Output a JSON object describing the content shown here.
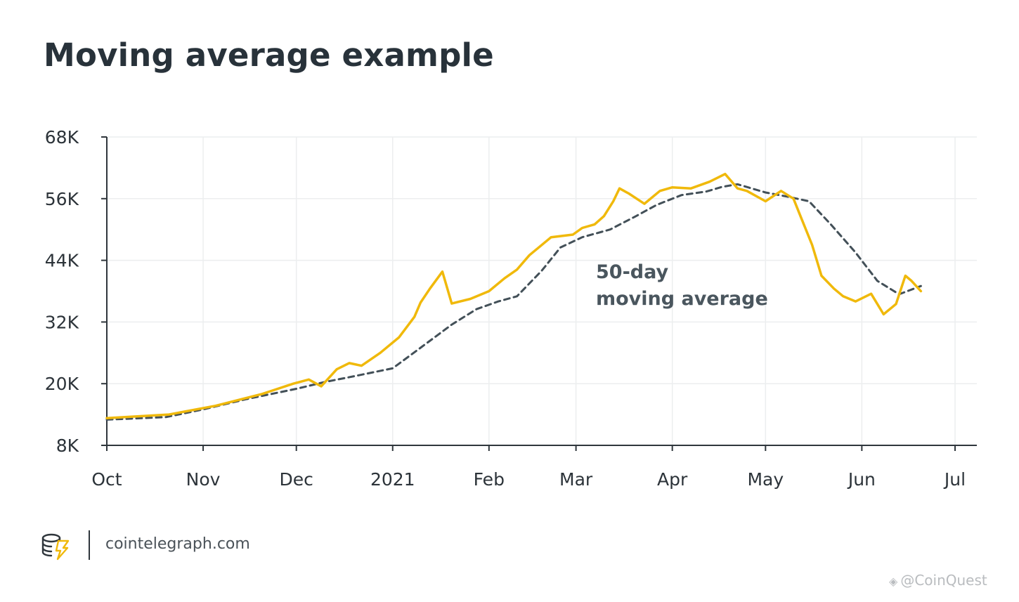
{
  "page": {
    "title": "Moving average example"
  },
  "chart_data": {
    "type": "line",
    "title": "Moving average example",
    "xlabel": "",
    "ylabel": "",
    "x_ticks": [
      "Oct",
      "Nov",
      "Dec",
      "2021",
      "Feb",
      "Mar",
      "Apr",
      "May",
      "Jun",
      "Jul"
    ],
    "y_ticks": [
      "8K",
      "20K",
      "32K",
      "44K",
      "56K",
      "68K"
    ],
    "ylim": [
      8000,
      68000
    ],
    "xlim": [
      "2020-10-01",
      "2021-07-01"
    ],
    "grid": true,
    "annotation": {
      "line1": "50-day",
      "line2": "moving average"
    },
    "series": [
      {
        "color": "#f0b90b",
        "style": "solid",
        "points": [
          [
            "2020-10-01",
            13300
          ],
          [
            "2020-10-21",
            14000
          ],
          [
            "2020-11-05",
            15700
          ],
          [
            "2020-11-20",
            18000
          ],
          [
            "2020-11-30",
            20000
          ],
          [
            "2020-12-05",
            20800
          ],
          [
            "2020-12-09",
            19500
          ],
          [
            "2020-12-14",
            22800
          ],
          [
            "2020-12-18",
            24000
          ],
          [
            "2020-12-22",
            23500
          ],
          [
            "2020-12-28",
            26000
          ],
          [
            "2021-01-03",
            29000
          ],
          [
            "2021-01-08",
            33000
          ],
          [
            "2021-01-10",
            35800
          ],
          [
            "2021-01-13",
            38500
          ],
          [
            "2021-01-17",
            41800
          ],
          [
            "2021-01-20",
            35600
          ],
          [
            "2021-01-26",
            36500
          ],
          [
            "2021-02-01",
            38000
          ],
          [
            "2021-02-06",
            40500
          ],
          [
            "2021-02-10",
            42200
          ],
          [
            "2021-02-14",
            45000
          ],
          [
            "2021-02-21",
            48500
          ],
          [
            "2021-02-28",
            49000
          ],
          [
            "2021-03-03",
            50300
          ],
          [
            "2021-03-07",
            51000
          ],
          [
            "2021-03-10",
            52600
          ],
          [
            "2021-03-13",
            55500
          ],
          [
            "2021-03-15",
            58000
          ],
          [
            "2021-03-18",
            57000
          ],
          [
            "2021-03-23",
            55000
          ],
          [
            "2021-03-28",
            57500
          ],
          [
            "2021-04-01",
            58200
          ],
          [
            "2021-04-07",
            58000
          ],
          [
            "2021-04-13",
            59300
          ],
          [
            "2021-04-18",
            60800
          ],
          [
            "2021-04-22",
            58000
          ],
          [
            "2021-04-25",
            57500
          ],
          [
            "2021-05-01",
            55500
          ],
          [
            "2021-05-06",
            57500
          ],
          [
            "2021-05-10",
            56000
          ],
          [
            "2021-05-12",
            53000
          ],
          [
            "2021-05-16",
            47000
          ],
          [
            "2021-05-19",
            41000
          ],
          [
            "2021-05-23",
            38500
          ],
          [
            "2021-05-26",
            37000
          ],
          [
            "2021-05-30",
            36000
          ],
          [
            "2021-06-04",
            37500
          ],
          [
            "2021-06-08",
            33500
          ],
          [
            "2021-06-12",
            35500
          ],
          [
            "2021-06-15",
            41000
          ],
          [
            "2021-06-17",
            40000
          ],
          [
            "2021-06-20",
            38000
          ]
        ]
      },
      {
        "color": "#435058",
        "style": "dashed",
        "points": [
          [
            "2020-10-01",
            13000
          ],
          [
            "2020-10-20",
            13500
          ],
          [
            "2020-11-01",
            15000
          ],
          [
            "2020-11-15",
            17000
          ],
          [
            "2020-12-01",
            19000
          ],
          [
            "2020-12-10",
            20300
          ],
          [
            "2020-12-20",
            21500
          ],
          [
            "2021-01-01",
            23000
          ],
          [
            "2021-01-10",
            27000
          ],
          [
            "2021-01-20",
            31500
          ],
          [
            "2021-01-28",
            34500
          ],
          [
            "2021-02-04",
            36000
          ],
          [
            "2021-02-10",
            37000
          ],
          [
            "2021-02-18",
            42000
          ],
          [
            "2021-02-24",
            46500
          ],
          [
            "2021-03-03",
            48500
          ],
          [
            "2021-03-12",
            50000
          ],
          [
            "2021-03-20",
            52500
          ],
          [
            "2021-03-27",
            54800
          ],
          [
            "2021-04-04",
            56700
          ],
          [
            "2021-04-12",
            57400
          ],
          [
            "2021-04-17",
            58300
          ],
          [
            "2021-04-22",
            58800
          ],
          [
            "2021-05-01",
            57200
          ],
          [
            "2021-05-08",
            56400
          ],
          [
            "2021-05-15",
            55500
          ],
          [
            "2021-05-22",
            51000
          ],
          [
            "2021-05-30",
            45500
          ],
          [
            "2021-06-06",
            40000
          ],
          [
            "2021-06-13",
            37400
          ],
          [
            "2021-06-20",
            39000
          ]
        ]
      }
    ]
  },
  "footer": {
    "site": "cointelegraph.com"
  },
  "watermark": {
    "text": "@CoinQuest"
  }
}
